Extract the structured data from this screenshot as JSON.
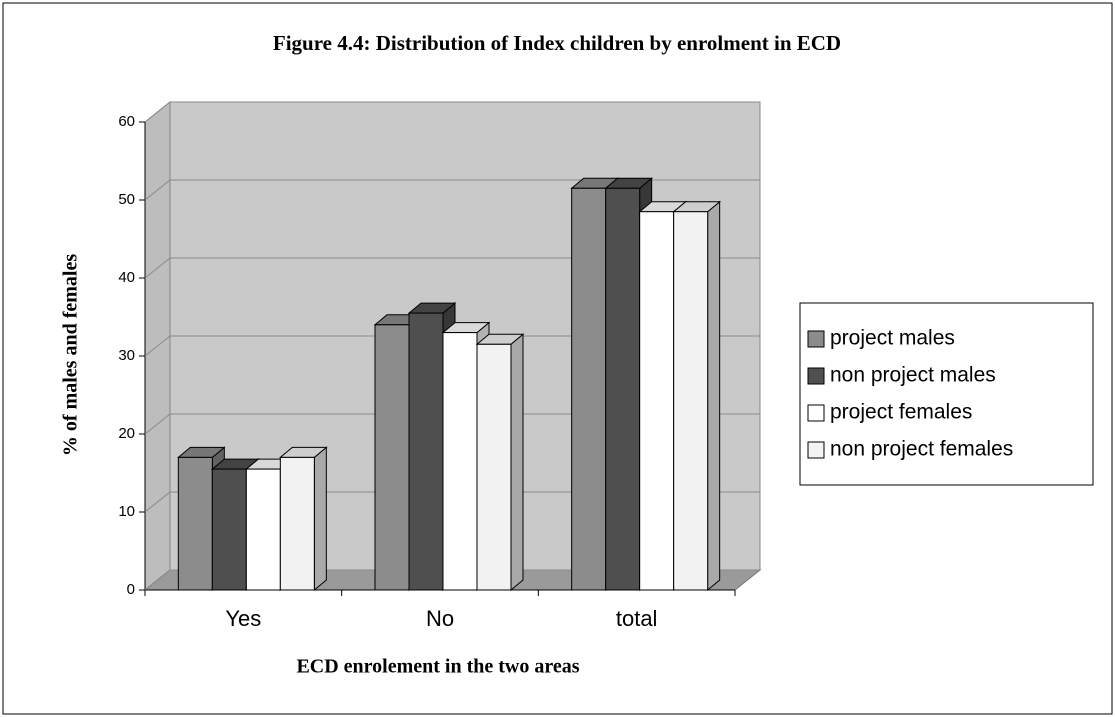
{
  "chart_data": {
    "type": "bar3d",
    "title": "Figure 4.4: Distribution of Index children by enrolment in ECD",
    "x_label": "ECD enrolement in the two areas",
    "y_label": "% of males and females",
    "categories": [
      "Yes",
      "No",
      "total"
    ],
    "series": [
      {
        "name": "project males",
        "color": "#8c8c8c",
        "values": [
          17,
          34,
          51.5
        ]
      },
      {
        "name": "non project males",
        "color": "#4f4f4f",
        "values": [
          15.5,
          35.5,
          51.5
        ]
      },
      {
        "name": "project females",
        "color": "#ffffff",
        "values": [
          15.5,
          33,
          48.5
        ]
      },
      {
        "name": "non project females",
        "color": "#f2f2f2",
        "values": [
          17,
          31.5,
          48.5
        ]
      }
    ],
    "ylim": [
      0,
      60
    ],
    "yticks": [
      0,
      10,
      20,
      30,
      40,
      50,
      60
    ],
    "grid": true,
    "legend": "right"
  }
}
